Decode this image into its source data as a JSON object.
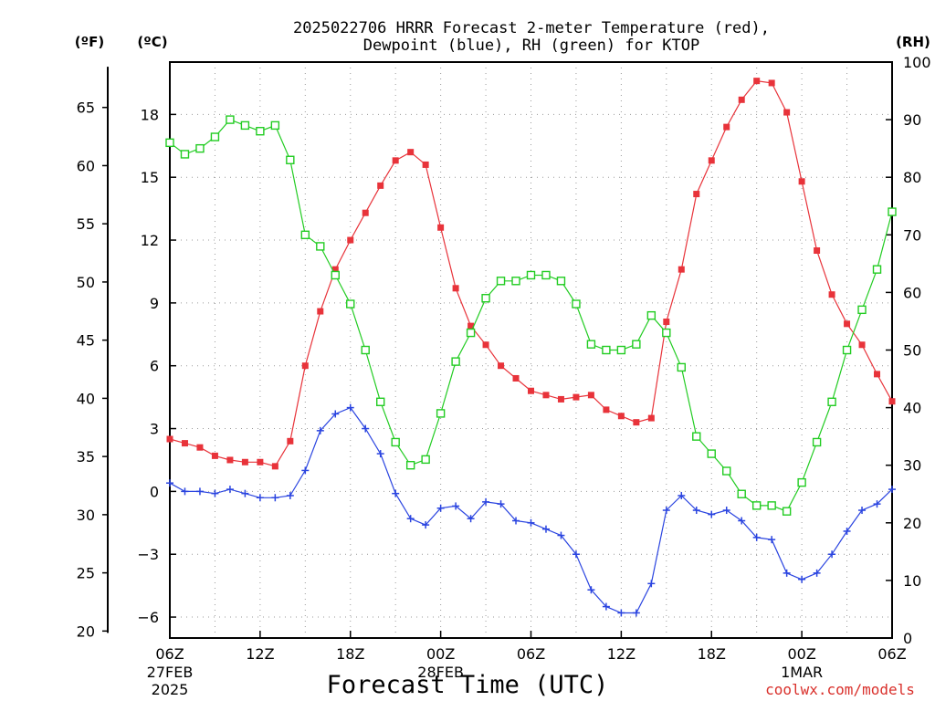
{
  "title_line1": "2025022706 HRRR Forecast 2-meter Temperature (red),",
  "title_line2": "Dewpoint (blue), RH (green) for KTOP",
  "unit_f": "(ºF)",
  "unit_c": "(ºC)",
  "unit_rh": "(RH)",
  "xlabel": "Forecast Time (UTC)",
  "credit": "coolwx.com/models",
  "colors": {
    "temperature": "#e8333a",
    "dewpoint": "#2a44e0",
    "rh": "#22cc22",
    "axis": "#000000",
    "grid": "#9a9a9a"
  },
  "chart_data": {
    "type": "line",
    "x_ticks": [
      {
        "hour": 0,
        "label": "06Z",
        "sub1": "27FEB",
        "sub2": "2025"
      },
      {
        "hour": 6,
        "label": "12Z"
      },
      {
        "hour": 12,
        "label": "18Z"
      },
      {
        "hour": 18,
        "label": "00Z",
        "sub1": "28FEB"
      },
      {
        "hour": 24,
        "label": "06Z"
      },
      {
        "hour": 30,
        "label": "12Z"
      },
      {
        "hour": 36,
        "label": "18Z"
      },
      {
        "hour": 42,
        "label": "00Z",
        "sub1": "1MAR"
      },
      {
        "hour": 48,
        "label": "06Z"
      }
    ],
    "x_range_hours": [
      0,
      48
    ],
    "y_left_celsius": {
      "range": [
        -7,
        20.5
      ],
      "ticks": [
        -6,
        -3,
        0,
        3,
        6,
        9,
        12,
        15,
        18
      ]
    },
    "y_left_fahrenheit": {
      "ticks": [
        20,
        25,
        30,
        35,
        40,
        45,
        50,
        55,
        60,
        65
      ]
    },
    "y_right_rh": {
      "range": [
        0,
        100
      ],
      "ticks": [
        0,
        10,
        20,
        30,
        40,
        50,
        60,
        70,
        80,
        90,
        100
      ]
    },
    "grid": true,
    "series": [
      {
        "name": "Temperature",
        "unit": "°C",
        "marker": "filled-square",
        "values": [
          2.5,
          2.3,
          2.1,
          1.7,
          1.5,
          1.4,
          1.4,
          1.2,
          2.4,
          6.0,
          8.6,
          10.6,
          12.0,
          13.3,
          14.6,
          15.8,
          16.2,
          15.6,
          12.6,
          9.7,
          7.9,
          7.0,
          6.0,
          5.4,
          4.8,
          4.6,
          4.4,
          4.5,
          4.6,
          3.9,
          3.6,
          3.3,
          3.5,
          8.1,
          10.6,
          14.2,
          15.8,
          17.4,
          18.7,
          19.6,
          19.5,
          18.1,
          14.8,
          11.5,
          9.4,
          8.0,
          7.0,
          5.6,
          4.3
        ]
      },
      {
        "name": "Dewpoint",
        "unit": "°C",
        "marker": "plus",
        "values": [
          0.4,
          0.0,
          0.0,
          -0.1,
          0.1,
          -0.1,
          -0.3,
          -0.3,
          -0.2,
          1.0,
          2.9,
          3.7,
          4.0,
          3.0,
          1.8,
          -0.1,
          -1.3,
          -1.6,
          -0.8,
          -0.7,
          -1.3,
          -0.5,
          -0.6,
          -1.4,
          -1.5,
          -1.8,
          -2.1,
          -3.0,
          -4.7,
          -5.5,
          -5.8,
          -5.8,
          -4.4,
          -0.9,
          -0.2,
          -0.9,
          -1.1,
          -0.9,
          -1.4,
          -2.2,
          -2.3,
          -3.9,
          -4.2,
          -3.9,
          -3.0,
          -1.9,
          -0.9,
          -0.6,
          0.1
        ]
      },
      {
        "name": "RH",
        "unit": "%",
        "marker": "open-square",
        "values": [
          86,
          84,
          85,
          87,
          90,
          89,
          88,
          89,
          83,
          70,
          68,
          63,
          58,
          50,
          41,
          34,
          30,
          31,
          39,
          48,
          53,
          59,
          62,
          62,
          63,
          63,
          62,
          58,
          51,
          50,
          50,
          51,
          56,
          53,
          47,
          35,
          32,
          29,
          25,
          23,
          23,
          22,
          27,
          34,
          41,
          50,
          57,
          64,
          74
        ]
      }
    ]
  }
}
